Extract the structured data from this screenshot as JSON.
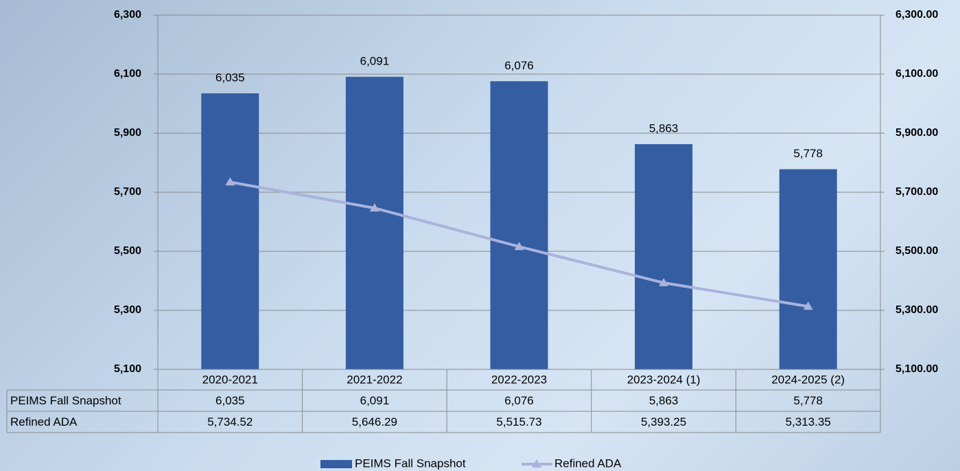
{
  "chart_data": {
    "type": "bar",
    "categories": [
      "2020-2021",
      "2021-2022",
      "2022-2023",
      "2023-2024 (1)",
      "2024-2025 (2)"
    ],
    "series": [
      {
        "name": "PEIMS Fall Snapshot",
        "type": "bar",
        "color": "#355da2",
        "values": [
          6035,
          6091,
          6076,
          5863,
          5778
        ],
        "value_labels": [
          "6,035",
          "6,091",
          "6,076",
          "5,863",
          "5,778"
        ]
      },
      {
        "name": "Refined ADA",
        "type": "line",
        "axis": "y2",
        "color": "#a9b3dd",
        "values": [
          5734.52,
          5646.29,
          5515.73,
          5393.25,
          5313.35
        ],
        "value_labels": [
          "5,734.52",
          "5,646.29",
          "5,515.73",
          "5,393.25",
          "5,313.35"
        ]
      }
    ],
    "ylim": [
      5100,
      6300
    ],
    "yticks": [
      {
        "value": 5100,
        "label": "5,100"
      },
      {
        "value": 5300,
        "label": "5,300"
      },
      {
        "value": 5500,
        "label": "5,500"
      },
      {
        "value": 5700,
        "label": "5,700"
      },
      {
        "value": 5900,
        "label": "5,900"
      },
      {
        "value": 6100,
        "label": "6,100"
      },
      {
        "value": 6300,
        "label": "6,300"
      }
    ],
    "y2lim": [
      5100,
      6300
    ],
    "y2ticks": [
      {
        "value": 5100,
        "label": "5,100.00"
      },
      {
        "value": 5300,
        "label": "5,300.00"
      },
      {
        "value": 5500,
        "label": "5,500.00"
      },
      {
        "value": 5700,
        "label": "5,700.00"
      },
      {
        "value": 5900,
        "label": "5,900.00"
      },
      {
        "value": 6100,
        "label": "6,100.00"
      },
      {
        "value": 6300,
        "label": "6,300.00"
      }
    ],
    "grid": true,
    "data_table": true,
    "legend": "bottom"
  }
}
